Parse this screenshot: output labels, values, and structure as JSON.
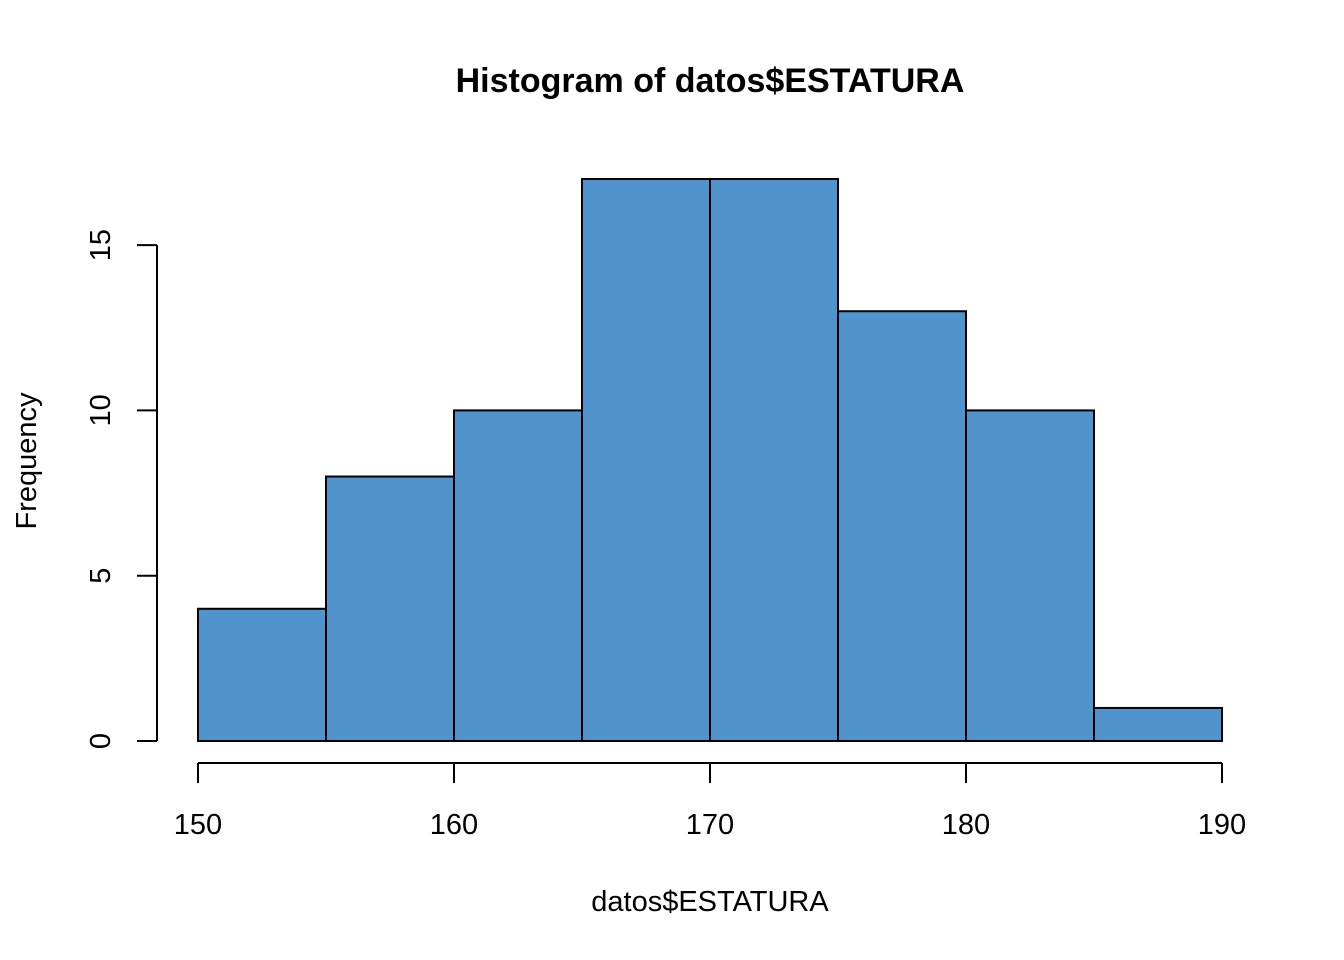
{
  "chart_data": {
    "type": "bar",
    "title": "Histogram of datos$ESTATURA",
    "xlabel": "datos$ESTATURA",
    "ylabel": "Frequency",
    "bins": [
      {
        "from": 150,
        "to": 155,
        "count": 4
      },
      {
        "from": 155,
        "to": 160,
        "count": 8
      },
      {
        "from": 160,
        "to": 165,
        "count": 10
      },
      {
        "from": 165,
        "to": 170,
        "count": 17
      },
      {
        "from": 170,
        "to": 175,
        "count": 17
      },
      {
        "from": 175,
        "to": 180,
        "count": 13
      },
      {
        "from": 180,
        "to": 185,
        "count": 10
      },
      {
        "from": 185,
        "to": 190,
        "count": 1
      }
    ],
    "xlim": [
      150,
      190
    ],
    "ylim": [
      0,
      17
    ],
    "x_ticks": [
      "150",
      "160",
      "170",
      "180",
      "190"
    ],
    "y_ticks": [
      "0",
      "5",
      "10",
      "15"
    ],
    "bar_color": "#4F94CD",
    "grid": false
  }
}
